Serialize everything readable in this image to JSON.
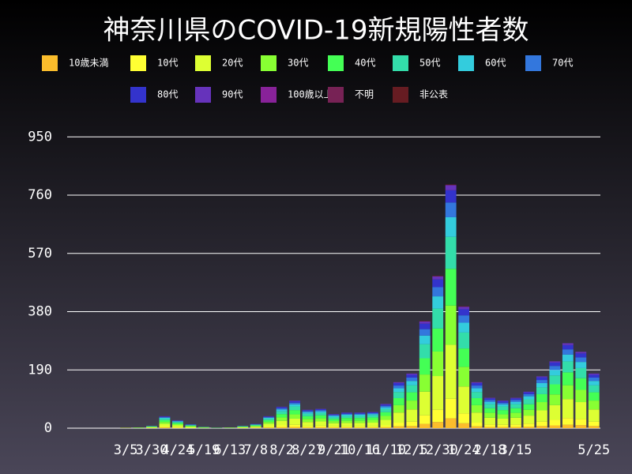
{
  "chart_data": {
    "type": "bar",
    "stacked": true,
    "title": "神奈川県のCOVID-19新規陽性者数",
    "categories": [
      null,
      null,
      null,
      null,
      "3/5",
      null,
      "3/30",
      null,
      "4/24",
      null,
      "5/19",
      null,
      "6/13",
      null,
      "7/8",
      null,
      "8/2",
      null,
      "8/27",
      null,
      "9/21",
      null,
      "10/16",
      null,
      "11/10",
      null,
      "12/5",
      null,
      "12/30",
      null,
      "1/24",
      null,
      "2/18",
      null,
      "3/15",
      null,
      null,
      null,
      null,
      null,
      "5/25"
    ],
    "series": [
      {
        "name": "10歳未満",
        "color": "#fbbd2c",
        "values": [
          0,
          0,
          0,
          0,
          0,
          0,
          0,
          2,
          1,
          0,
          0,
          0,
          0,
          0,
          1,
          2,
          3,
          4,
          2,
          3,
          2,
          2,
          2,
          2,
          3,
          6,
          7,
          14,
          20,
          32,
          16,
          6,
          4,
          4,
          4,
          5,
          7,
          9,
          11,
          10,
          7
        ]
      },
      {
        "name": "10代",
        "color": "#ffff33",
        "values": [
          0,
          0,
          0,
          0,
          0,
          0,
          1,
          3,
          2,
          1,
          0,
          0,
          0,
          1,
          1,
          3,
          6,
          7,
          5,
          5,
          4,
          4,
          4,
          4,
          6,
          12,
          14,
          28,
          40,
          64,
          32,
          12,
          8,
          7,
          8,
          10,
          14,
          18,
          22,
          20,
          14
        ]
      },
      {
        "name": "20代",
        "color": "#ddff33",
        "values": [
          0,
          0,
          0,
          0,
          1,
          1,
          2,
          9,
          6,
          3,
          1,
          0,
          1,
          2,
          3,
          9,
          15,
          20,
          13,
          14,
          10,
          11,
          11,
          12,
          18,
          33,
          40,
          77,
          110,
          176,
          88,
          33,
          22,
          20,
          22,
          26,
          37,
          48,
          62,
          55,
          40
        ]
      },
      {
        "name": "30代",
        "color": "#88ff33",
        "values": [
          0,
          0,
          0,
          0,
          0,
          0,
          1,
          6,
          4,
          2,
          1,
          0,
          0,
          1,
          2,
          6,
          11,
          14,
          10,
          10,
          7,
          8,
          8,
          9,
          13,
          24,
          29,
          56,
          80,
          128,
          64,
          24,
          16,
          14,
          16,
          19,
          27,
          35,
          45,
          40,
          29
        ]
      },
      {
        "name": "40代",
        "color": "#44ff55",
        "values": [
          0,
          0,
          0,
          0,
          0,
          1,
          1,
          6,
          4,
          2,
          1,
          1,
          1,
          1,
          2,
          6,
          11,
          14,
          9,
          10,
          7,
          8,
          8,
          8,
          12,
          23,
          27,
          53,
          75,
          120,
          60,
          23,
          15,
          14,
          15,
          18,
          26,
          33,
          42,
          38,
          27
        ]
      },
      {
        "name": "50代",
        "color": "#33ddaa",
        "values": [
          0,
          0,
          0,
          0,
          0,
          0,
          1,
          5,
          3,
          2,
          1,
          0,
          0,
          1,
          2,
          5,
          9,
          12,
          8,
          8,
          6,
          7,
          7,
          7,
          10,
          20,
          23,
          46,
          65,
          104,
          52,
          20,
          13,
          12,
          13,
          16,
          22,
          29,
          36,
          33,
          23
        ]
      },
      {
        "name": "60代",
        "color": "#33ccdd",
        "values": [
          0,
          0,
          0,
          0,
          0,
          0,
          1,
          3,
          2,
          1,
          0,
          0,
          0,
          1,
          1,
          3,
          6,
          7,
          5,
          5,
          4,
          4,
          4,
          4,
          6,
          12,
          14,
          28,
          40,
          64,
          32,
          12,
          8,
          7,
          8,
          10,
          14,
          18,
          22,
          20,
          14
        ]
      },
      {
        "name": "70代",
        "color": "#3377dd",
        "values": [
          0,
          0,
          0,
          0,
          0,
          0,
          0,
          2,
          2,
          1,
          0,
          0,
          0,
          0,
          1,
          2,
          4,
          5,
          4,
          4,
          3,
          3,
          3,
          3,
          5,
          9,
          11,
          21,
          30,
          48,
          24,
          9,
          6,
          5,
          6,
          7,
          10,
          13,
          17,
          15,
          11
        ]
      },
      {
        "name": "80代",
        "color": "#3333cc",
        "values": [
          0,
          0,
          0,
          0,
          0,
          0,
          0,
          2,
          1,
          1,
          0,
          0,
          0,
          0,
          1,
          2,
          4,
          5,
          3,
          3,
          2,
          3,
          3,
          3,
          4,
          8,
          9,
          18,
          25,
          40,
          20,
          8,
          5,
          5,
          5,
          6,
          9,
          11,
          14,
          13,
          9
        ]
      },
      {
        "name": "90代",
        "color": "#6633bb",
        "values": [
          0,
          0,
          0,
          0,
          0,
          0,
          0,
          1,
          1,
          0,
          0,
          0,
          0,
          0,
          0,
          1,
          1,
          2,
          1,
          1,
          1,
          1,
          1,
          1,
          2,
          3,
          4,
          7,
          10,
          16,
          8,
          3,
          2,
          2,
          2,
          2,
          3,
          4,
          6,
          5,
          4
        ]
      },
      {
        "name": "100歳以上",
        "color": "#882299",
        "values": [
          0,
          0,
          0,
          0,
          0,
          0,
          0,
          0,
          0,
          0,
          0,
          0,
          0,
          0,
          0,
          0,
          0,
          0,
          0,
          0,
          0,
          0,
          0,
          0,
          0,
          0,
          0,
          0,
          0,
          1,
          0,
          0,
          0,
          0,
          0,
          0,
          0,
          0,
          0,
          0,
          0
        ]
      },
      {
        "name": "不明",
        "color": "#772255",
        "values": [
          0,
          0,
          0,
          0,
          0,
          0,
          0,
          0,
          0,
          0,
          0,
          0,
          0,
          0,
          0,
          0,
          0,
          0,
          0,
          0,
          0,
          0,
          0,
          0,
          0,
          0,
          0,
          1,
          1,
          1,
          1,
          0,
          0,
          0,
          0,
          0,
          0,
          0,
          0,
          0,
          0
        ]
      },
      {
        "name": "非公表",
        "color": "#661c22",
        "values": [
          0,
          0,
          0,
          0,
          0,
          0,
          0,
          0,
          0,
          0,
          0,
          0,
          0,
          0,
          0,
          0,
          0,
          0,
          0,
          0,
          0,
          0,
          0,
          0,
          0,
          0,
          0,
          1,
          1,
          1,
          1,
          0,
          0,
          0,
          0,
          0,
          0,
          0,
          0,
          0,
          0
        ]
      }
    ],
    "ylim": [
      0,
      1010
    ],
    "yticks": [
      0,
      190,
      380,
      570,
      760,
      950
    ],
    "grid": true
  }
}
